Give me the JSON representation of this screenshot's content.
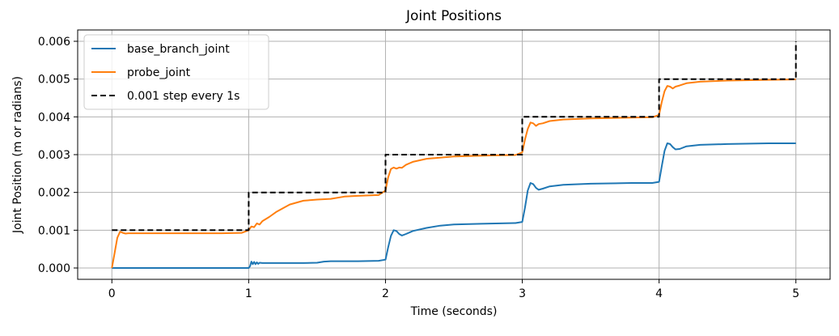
{
  "chart_data": {
    "type": "line",
    "title": "Joint Positions",
    "xlabel": "Time (seconds)",
    "ylabel": "Joint Position (m or radians)",
    "xlim": [
      -0.25,
      5.25
    ],
    "ylim": [
      -0.0003,
      0.0063
    ],
    "xticks": [
      0,
      1,
      2,
      3,
      4,
      5
    ],
    "xtick_labels": [
      "0",
      "1",
      "2",
      "3",
      "4",
      "5"
    ],
    "yticks": [
      0.0,
      0.001,
      0.002,
      0.003,
      0.004,
      0.005,
      0.006
    ],
    "ytick_labels": [
      "0.000",
      "0.001",
      "0.002",
      "0.003",
      "0.004",
      "0.005",
      "0.006"
    ],
    "grid": true,
    "legend_position": "top-left",
    "series": [
      {
        "name": "base_branch_joint",
        "color": "#1f77b4",
        "style": "solid",
        "x": [
          0,
          0.2,
          0.5,
          0.8,
          1.0,
          1.01,
          1.02,
          1.03,
          1.04,
          1.05,
          1.06,
          1.07,
          1.08,
          1.1,
          1.2,
          1.4,
          1.5,
          1.55,
          1.6,
          1.8,
          1.95,
          2.0,
          2.02,
          2.04,
          2.06,
          2.08,
          2.1,
          2.12,
          2.15,
          2.2,
          2.3,
          2.4,
          2.5,
          2.7,
          2.95,
          3.0,
          3.02,
          3.04,
          3.06,
          3.08,
          3.1,
          3.12,
          3.15,
          3.2,
          3.3,
          3.5,
          3.8,
          3.95,
          4.0,
          4.02,
          4.04,
          4.06,
          4.08,
          4.1,
          4.12,
          4.15,
          4.2,
          4.3,
          4.5,
          4.8,
          5.0
        ],
        "y": [
          0.0,
          0.0,
          0.0,
          0.0,
          0.0,
          5e-05,
          0.00017,
          0.0001,
          0.00016,
          0.0001,
          0.00015,
          0.00011,
          0.00014,
          0.00013,
          0.00013,
          0.00013,
          0.00014,
          0.00017,
          0.00018,
          0.00018,
          0.00019,
          0.00022,
          0.00055,
          0.00085,
          0.001,
          0.00098,
          0.0009,
          0.00086,
          0.0009,
          0.00098,
          0.00106,
          0.00112,
          0.00115,
          0.00117,
          0.00119,
          0.00122,
          0.0016,
          0.00205,
          0.00225,
          0.00222,
          0.00212,
          0.00207,
          0.0021,
          0.00216,
          0.0022,
          0.00223,
          0.00225,
          0.00225,
          0.00228,
          0.0027,
          0.0031,
          0.0033,
          0.00328,
          0.0032,
          0.00314,
          0.00315,
          0.00322,
          0.00326,
          0.00328,
          0.0033,
          0.0033
        ]
      },
      {
        "name": "probe_joint",
        "color": "#ff7f0e",
        "style": "solid",
        "x": [
          0,
          0.02,
          0.04,
          0.06,
          0.08,
          0.1,
          0.12,
          0.15,
          0.2,
          0.5,
          0.8,
          0.95,
          1.0,
          1.02,
          1.04,
          1.06,
          1.08,
          1.1,
          1.15,
          1.2,
          1.3,
          1.4,
          1.5,
          1.6,
          1.7,
          1.8,
          1.95,
          2.0,
          2.02,
          2.04,
          2.06,
          2.08,
          2.1,
          2.12,
          2.15,
          2.2,
          2.3,
          2.5,
          2.8,
          2.95,
          3.0,
          3.02,
          3.04,
          3.06,
          3.08,
          3.1,
          3.12,
          3.15,
          3.2,
          3.3,
          3.5,
          3.8,
          3.95,
          4.0,
          4.02,
          4.04,
          4.06,
          4.08,
          4.1,
          4.12,
          4.15,
          4.2,
          4.3,
          4.5,
          4.8,
          5.0
        ],
        "y": [
          0.0,
          0.0004,
          0.0008,
          0.00096,
          0.00093,
          0.00091,
          0.00092,
          0.00092,
          0.00092,
          0.00092,
          0.00092,
          0.00093,
          0.001,
          0.0011,
          0.00108,
          0.00118,
          0.00115,
          0.00124,
          0.00135,
          0.00148,
          0.00168,
          0.00178,
          0.00181,
          0.00183,
          0.00189,
          0.00191,
          0.00193,
          0.00205,
          0.0024,
          0.00262,
          0.00266,
          0.00263,
          0.00266,
          0.00265,
          0.00273,
          0.00281,
          0.00289,
          0.00295,
          0.00298,
          0.00299,
          0.00306,
          0.0034,
          0.00368,
          0.00385,
          0.00383,
          0.00376,
          0.00381,
          0.00383,
          0.00389,
          0.00393,
          0.00396,
          0.00398,
          0.00399,
          0.00405,
          0.0044,
          0.00468,
          0.00482,
          0.0048,
          0.00475,
          0.0048,
          0.00483,
          0.00489,
          0.00493,
          0.00496,
          0.00498,
          0.00499
        ]
      },
      {
        "name": "0.001 step every 1s",
        "color": "#000000",
        "style": "dashed",
        "x": [
          0,
          1,
          1,
          2,
          2,
          3,
          3,
          4,
          4,
          5,
          5
        ],
        "y": [
          0.001,
          0.001,
          0.002,
          0.002,
          0.003,
          0.003,
          0.004,
          0.004,
          0.005,
          0.005,
          0.006
        ]
      }
    ]
  }
}
